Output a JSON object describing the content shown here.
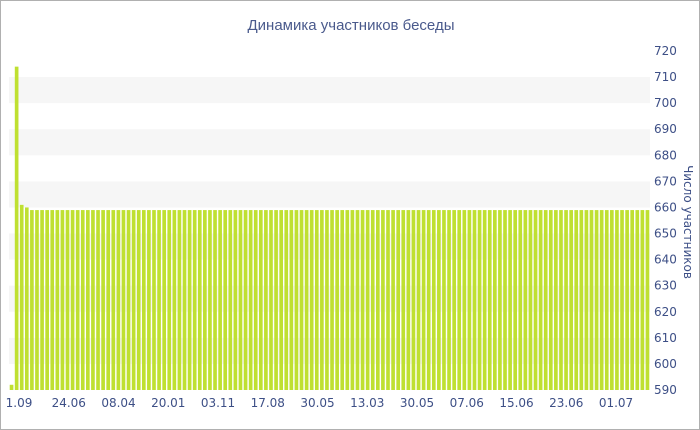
{
  "chart_data": {
    "type": "bar",
    "title": "Динамика участников беседы",
    "ylabel": "Число участников",
    "xlabel": "",
    "ylim": [
      590,
      720
    ],
    "y_ticks": [
      590,
      600,
      610,
      620,
      630,
      640,
      650,
      660,
      670,
      680,
      690,
      700,
      710,
      720
    ],
    "x_tick_labels": [
      "1.09",
      "24.06",
      "08.04",
      "20.01",
      "03.11",
      "17.08",
      "30.05",
      "13.03",
      "30.05",
      "07.06",
      "15.06",
      "23.06",
      "01.07"
    ],
    "y_axis_side": "right",
    "grid": "alternating horizontal bands",
    "legend": "none",
    "colors": {
      "bar": "#bfe031",
      "band": "#f6f6f6",
      "text": "#3d4f86"
    },
    "series": [
      {
        "values": [
          592,
          714,
          661,
          660,
          659,
          659,
          659,
          659,
          659,
          659,
          659,
          659,
          659,
          659,
          659,
          659,
          659,
          659,
          659,
          659,
          659,
          659,
          659,
          659,
          659,
          659,
          659,
          659,
          659,
          659,
          659,
          659,
          659,
          659,
          659,
          659,
          659,
          659,
          659,
          659,
          659,
          659,
          659,
          659,
          659,
          659,
          659,
          659,
          659,
          659,
          659,
          659,
          659,
          659,
          659,
          659,
          659,
          659,
          659,
          659,
          659,
          659,
          659,
          659,
          659,
          659,
          659,
          659,
          659,
          659,
          659,
          659,
          659,
          659,
          659,
          659,
          659,
          659,
          659,
          659,
          659,
          659,
          659,
          659,
          659,
          659,
          659,
          659,
          659,
          659,
          659,
          659,
          659,
          659,
          659,
          659,
          659,
          659,
          659,
          659,
          659,
          659,
          659,
          659,
          659,
          659,
          659,
          659,
          659,
          659,
          659,
          659,
          659,
          659,
          659,
          659,
          659,
          659,
          659,
          659,
          659,
          659,
          659,
          659,
          659,
          659
        ]
      }
    ]
  }
}
